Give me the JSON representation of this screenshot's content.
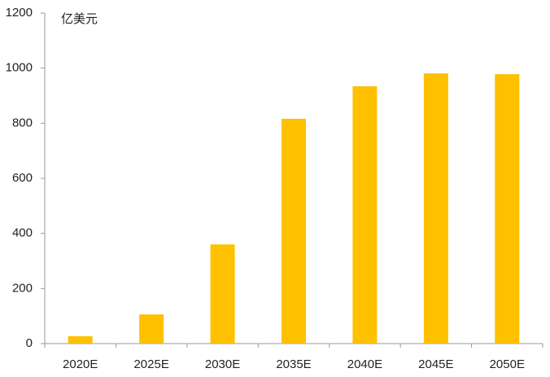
{
  "chart_data": {
    "type": "bar",
    "y_label": "亿美元",
    "categories": [
      "2020E",
      "2025E",
      "2030E",
      "2035E",
      "2040E",
      "2045E",
      "2050E"
    ],
    "values": [
      27,
      106,
      360,
      816,
      934,
      981,
      978
    ],
    "color": "#ffc000",
    "ylim": [
      0,
      1200
    ],
    "yticks": [
      0,
      200,
      400,
      600,
      800,
      1000,
      1200
    ],
    "grid": false
  }
}
